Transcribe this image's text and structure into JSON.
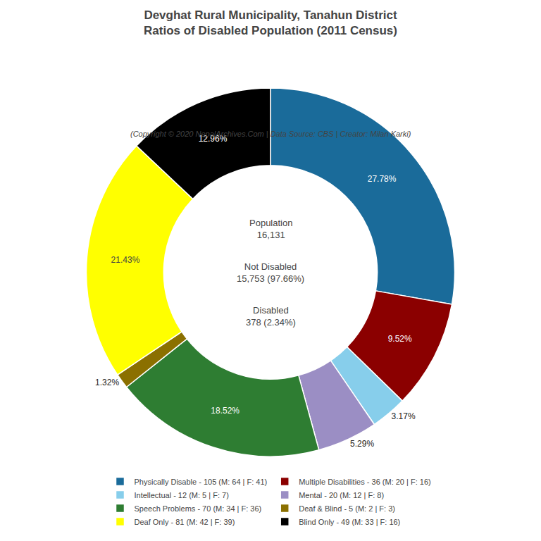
{
  "chart_data": {
    "type": "pie",
    "title": "Devghat Rural Municipality, Tanahun District\nRatios of Disabled Population (2011 Census)",
    "subtitle": "(Copyright © 2020 NepalArchives.Com | Data Source: CBS | Creator: Milan Karki)",
    "categories": [
      "Physically Disable - 105 (M: 64 | F: 41)",
      "Multiple Disabilities - 36 (M: 20 | F: 16)",
      "Intellectual - 12 (M: 5 | F: 7)",
      "Mental - 20 (M: 12 | F: 8)",
      "Speech Problems - 70 (M: 34 | F: 36)",
      "Deaf & Blind - 5 (M: 2 | F: 3)",
      "Deaf Only - 81 (M: 42 | F: 39)",
      "Blind Only - 49 (M: 33 | F: 16)"
    ],
    "values": [
      27.78,
      9.52,
      3.17,
      5.29,
      18.52,
      1.32,
      21.43,
      12.96
    ],
    "value_labels": [
      "27.78%",
      "9.52%",
      "3.17%",
      "5.29%",
      "18.52%",
      "1.32%",
      "21.43%",
      "12.96%"
    ],
    "colors": [
      "#1a6b9a",
      "#8b0000",
      "#87ceeb",
      "#9b8ec4",
      "#2e7d32",
      "#8b7000",
      "#ffff00",
      "#000000"
    ],
    "data_labels": true,
    "annotations": [
      "Population\n16,131",
      "Not Disabled\n15,753 (97.66%)",
      "Disabled\n378 (2.34%)"
    ]
  }
}
